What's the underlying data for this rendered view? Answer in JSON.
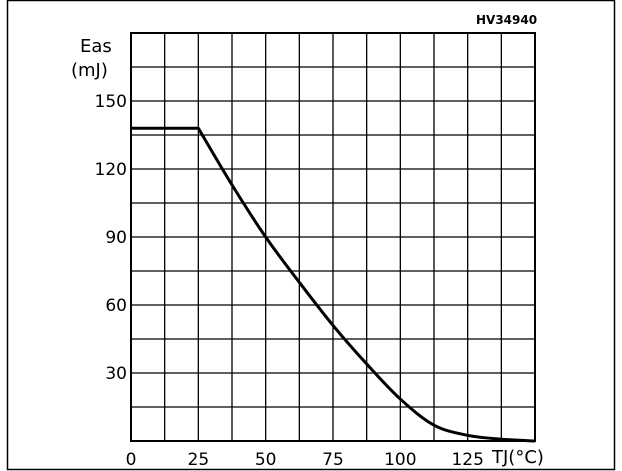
{
  "chart_data": {
    "type": "line",
    "ref_code": "HV34940",
    "ylabel_line1": "Eas",
    "ylabel_line2": "(mJ)",
    "xlabel": "TJ(°C)",
    "xlim": [
      0,
      150
    ],
    "ylim": [
      0,
      180
    ],
    "x_ticks": [
      0,
      25,
      50,
      75,
      100,
      125
    ],
    "x_tick_labels": [
      "0",
      "25",
      "50",
      "75",
      "100",
      "125"
    ],
    "y_ticks": [
      30,
      60,
      90,
      120,
      150
    ],
    "y_tick_labels": [
      "30",
      "60",
      "90",
      "120",
      "150"
    ],
    "grid": true,
    "grid_x_step": 12.5,
    "grid_y_step": 15,
    "series": [
      {
        "x": [
          0,
          25,
          37.5,
          50,
          62.5,
          75,
          87.5,
          100,
          112.5,
          125,
          137.5,
          150
        ],
        "y": [
          138,
          138,
          113,
          90,
          70,
          51,
          34,
          18.5,
          7,
          2.5,
          0.8,
          0
        ]
      }
    ],
    "colors": {
      "line": "#000000",
      "grid": "#000000",
      "background": "#ffffff"
    }
  }
}
